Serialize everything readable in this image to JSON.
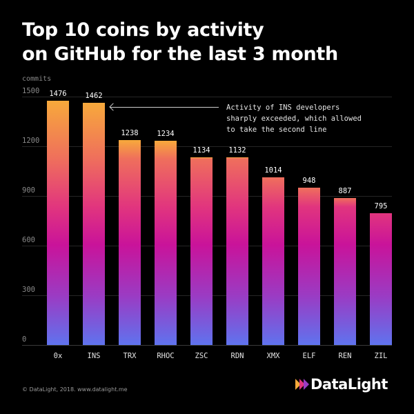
{
  "title_line1": "Top 10 coins by activity",
  "title_line2": "on GitHub for the last 3 month",
  "footer": "© DataLight, 2018. www.datalight.me",
  "logo_text": "DataLight",
  "annotation": "Activity of INS developers\nsharply exceeded, which allowed\nto take the second line",
  "chart_data": {
    "type": "bar",
    "title": "Top 10 coins by activity on GitHub for the last 3 month",
    "xlabel": "",
    "ylabel": "commits",
    "ylim": [
      0,
      1500
    ],
    "yticks": [
      "0",
      "300",
      "600",
      "900",
      "1200",
      "1500"
    ],
    "grid": true,
    "categories": [
      "0x",
      "INS",
      "TRX",
      "RHOC",
      "ZSC",
      "RDN",
      "XMX",
      "ELF",
      "REN",
      "ZIL"
    ],
    "values": [
      1476,
      1462,
      1238,
      1234,
      1134,
      1132,
      1014,
      948,
      887,
      795
    ],
    "value_labels": [
      "1476",
      "1462",
      "1238",
      "1234",
      "1134",
      "1132",
      "1014",
      "948",
      "887",
      "795"
    ],
    "annotations": [
      {
        "target": "INS",
        "text": "Activity of INS developers sharply exceeded, which allowed to take the second line"
      }
    ],
    "colors": {
      "gradient_top": "#f7a93b",
      "gradient_mid": "#c9139a",
      "gradient_bottom": "#5f73ee",
      "background": "#000000"
    }
  }
}
